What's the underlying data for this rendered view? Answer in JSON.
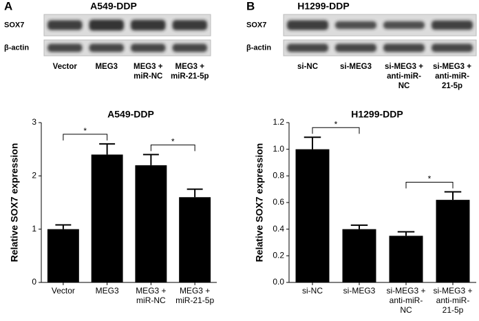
{
  "panels": [
    "A",
    "B"
  ],
  "blots": [
    {
      "title": "A549-DDP",
      "rows": [
        "SOX7",
        "β-actin"
      ],
      "lanes": [
        "Vector",
        "MEG3",
        "MEG3 +\nmiR-NC",
        "MEG3 +\nmiR-21-5p"
      ]
    },
    {
      "title": "H1299-DDP",
      "rows": [
        "SOX7",
        "β-actin"
      ],
      "lanes": [
        "si-NC",
        "si-MEG3",
        "si-MEG3 +\nanti-miR-\nNC",
        "si-MEG3 +\nanti-miR-\n21-5p"
      ]
    }
  ],
  "chart_data": [
    {
      "type": "bar",
      "title": "A549-DDP",
      "y_label": "Relative SOX7 expression",
      "categories": [
        "Vector",
        "MEG3",
        "MEG3 +\nmiR-NC",
        "MEG3 +\nmiR-21-5p"
      ],
      "values": [
        1.0,
        2.4,
        2.2,
        1.6
      ],
      "errors": [
        0.08,
        0.2,
        0.2,
        0.15
      ],
      "color": "#000000",
      "ylim": [
        0,
        3
      ],
      "yticks": [
        0,
        1,
        2,
        3
      ],
      "annotations": [
        {
          "label": "*",
          "pair": [
            0,
            1
          ]
        },
        {
          "label": "*",
          "pair": [
            2,
            3
          ]
        }
      ]
    },
    {
      "type": "bar",
      "title": "H1299-DDP",
      "y_label": "Relative SOX7 expression",
      "categories": [
        "si-NC",
        "si-MEG3",
        "si-MEG3 +\nanti-miR-\nNC",
        "si-MEG3 +\nanti-miR-\n21-5p"
      ],
      "values": [
        1.0,
        0.4,
        0.35,
        0.62
      ],
      "errors": [
        0.09,
        0.03,
        0.03,
        0.06
      ],
      "color": "#000000",
      "ylim": [
        0,
        1.2
      ],
      "yticks": [
        {
          "value": 0,
          "label": "0.0"
        },
        0.2,
        0.4,
        0.6,
        0.8,
        {
          "value": 1,
          "label": "1.0"
        },
        1.2
      ],
      "annotations": [
        {
          "label": "*",
          "pair": [
            0,
            1
          ]
        },
        {
          "label": "*",
          "pair": [
            2,
            3
          ]
        }
      ]
    }
  ]
}
